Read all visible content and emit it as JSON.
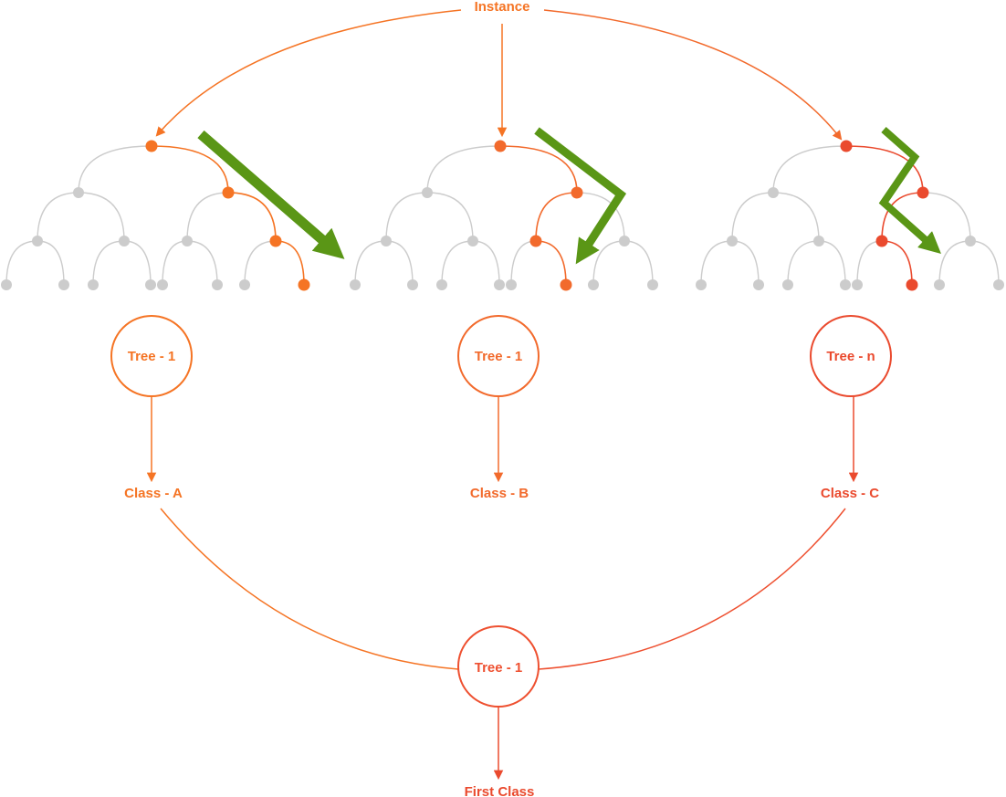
{
  "title": "Instance",
  "colors": {
    "orange": "#F57424",
    "orange_mid": "#F26A2C",
    "red_orange": "#EE5030",
    "red": "#EA4A2E",
    "gray": "#CCCCCC",
    "green": "#5A9616",
    "green_light": "#7DB534",
    "background": "#FFFFFF"
  },
  "trees": [
    {
      "name": "Tree - 1",
      "result": "Class - A",
      "path": [
        0,
        1,
        3,
        7
      ],
      "color": "#F57424"
    },
    {
      "name": "Tree - 1",
      "result": "Class - B",
      "path": [
        0,
        1,
        2,
        5
      ],
      "color": "#F26A2C"
    },
    {
      "name": "Tree - n",
      "result": "Class - C",
      "path": [
        0,
        1,
        2,
        5
      ],
      "color": "#EA4A2E"
    }
  ],
  "vote": {
    "name": "Tree - 1",
    "result": "First Class"
  }
}
